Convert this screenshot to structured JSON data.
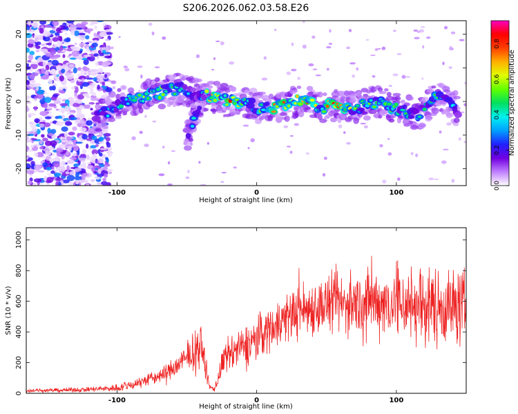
{
  "chart_data": [
    {
      "type": "heatmap",
      "title": "S206.2026.062.03.58.E26",
      "xlabel": "Height of straight line (km)",
      "ylabel": "Frequency (Hz)",
      "xlim": [
        -165,
        150
      ],
      "ylim": [
        -25,
        24
      ],
      "xticks": [
        -100,
        0,
        100
      ],
      "xtick_labels": [
        "-100",
        "0",
        "100"
      ],
      "yticks": [
        20,
        10,
        0,
        -10,
        -20
      ],
      "ytick_labels": [
        "20",
        "10",
        "0",
        "-10",
        "-20"
      ],
      "colorbar": {
        "label": "Normalized spectral amplitude",
        "range": [
          0,
          0.93
        ],
        "ticks": [
          0.0,
          0.2,
          0.4,
          0.6,
          0.8
        ],
        "tick_labels": [
          "0.0",
          "0.2",
          "0.4",
          "0.6",
          "0.8"
        ],
        "colormap": [
          "#ffffff",
          "#c080ff",
          "#7000e0",
          "#2020ff",
          "#00a0ff",
          "#00f0f0",
          "#00e060",
          "#60ff00",
          "#e0ff00",
          "#ffb000",
          "#ff4000",
          "#ff0000",
          "#ff00c0"
        ]
      },
      "ridge": [
        {
          "x": -115,
          "f": -5,
          "a": 0.3
        },
        {
          "x": -95,
          "f": 0,
          "a": 0.45
        },
        {
          "x": -75,
          "f": 2,
          "a": 0.6
        },
        {
          "x": -55,
          "f": 4,
          "a": 0.5
        },
        {
          "x": -45,
          "f": 2,
          "a": 0.3
        },
        {
          "x": -35,
          "f": 2,
          "a": 0.65
        },
        {
          "x": -20,
          "f": 0,
          "a": 0.8
        },
        {
          "x": -5,
          "f": 0,
          "a": 0.4
        },
        {
          "x": 0,
          "f": -2,
          "a": 0.45
        },
        {
          "x": 15,
          "f": -1.5,
          "a": 0.85
        },
        {
          "x": 25,
          "f": -0.5,
          "a": 0.7
        },
        {
          "x": 35,
          "f": 1,
          "a": 0.85
        },
        {
          "x": 45,
          "f": -2,
          "a": 0.55
        },
        {
          "x": 55,
          "f": -1,
          "a": 0.85
        },
        {
          "x": 70,
          "f": -2,
          "a": 0.55
        },
        {
          "x": 85,
          "f": 0,
          "a": 0.5
        },
        {
          "x": 100,
          "f": -2,
          "a": 0.5
        },
        {
          "x": 115,
          "f": -4,
          "a": 0.4
        },
        {
          "x": 130,
          "f": 2,
          "a": 0.55
        },
        {
          "x": 145,
          "f": -3,
          "a": 0.35
        }
      ],
      "branch": [
        {
          "x": -50,
          "f": -10,
          "a": 0.25
        },
        {
          "x": -45,
          "f": -5,
          "a": 0.4
        },
        {
          "x": -38,
          "f": 2,
          "a": 0.35
        }
      ]
    },
    {
      "type": "line",
      "xlabel": "Height of straight line (km)",
      "ylabel": "SNR (10 * v/v)",
      "xlim": [
        -165,
        150
      ],
      "ylim": [
        0,
        1080
      ],
      "xticks": [
        -100,
        0,
        100
      ],
      "xtick_labels": [
        "-100",
        "0",
        "100"
      ],
      "yticks": [
        0,
        200,
        400,
        600,
        800,
        1000
      ],
      "ytick_labels": [
        "0",
        "200",
        "400",
        "600",
        "800",
        "1000"
      ],
      "series": [
        {
          "name": "SNR",
          "color": "#ee2222",
          "envelope": {
            "x": [
              -165,
              -140,
              -120,
              -100,
              -90,
              -80,
              -70,
              -60,
              -50,
              -42,
              -38,
              -34,
              -30,
              -25,
              -20,
              -15,
              -10,
              -5,
              0,
              10,
              20,
              30,
              50,
              70,
              90,
              110,
              130,
              150
            ],
            "mean": [
              18,
              20,
              25,
              35,
              55,
              85,
              110,
              160,
              230,
              300,
              260,
              40,
              30,
              180,
              250,
              280,
              300,
              330,
              360,
              430,
              490,
              540,
              580,
              590,
              600,
              580,
              570,
              560
            ],
            "spread": [
              8,
              10,
              12,
              18,
              25,
              30,
              35,
              50,
              70,
              110,
              90,
              20,
              15,
              70,
              90,
              90,
              90,
              100,
              110,
              110,
              120,
              130,
              140,
              150,
              170,
              190,
              190,
              180
            ]
          }
        }
      ]
    }
  ]
}
